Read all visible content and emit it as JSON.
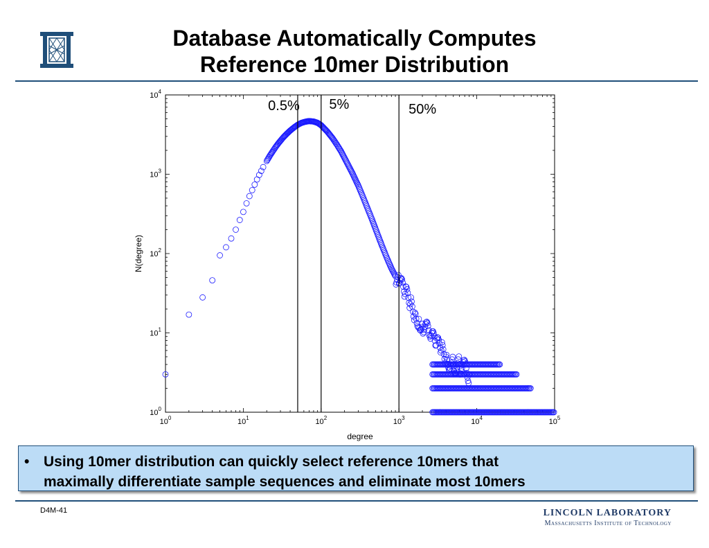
{
  "slide": {
    "title_lines": [
      "Database Automatically Computes",
      "Reference 10mer Distribution"
    ],
    "bullet_mark": "•",
    "bullet_lines": [
      "Using 10mer distribution can quickly select reference 10mers that",
      "maximally differentiate sample sequences and eliminate most 10mers"
    ],
    "footer_code": "D4M-41",
    "lab_name": "LINCOLN LABORATORY",
    "lab_subtitle": "Massachusetts Institute of Technology",
    "colors": {
      "rule": "#1f4e79",
      "bullet_box": "#bcdcf6",
      "markers": "#1a1aff",
      "lab_text": "#1f3a66"
    },
    "logo_icon": "mit-ll-logo-icon"
  },
  "chart_data": {
    "type": "scatter",
    "title": "",
    "xlabel": "degree",
    "ylabel": "N(degree)",
    "xscale": "log",
    "yscale": "log",
    "xlim": [
      1,
      100000
    ],
    "ylim": [
      1,
      10000
    ],
    "x_ticks": [
      {
        "base": "10",
        "exp": "0"
      },
      {
        "base": "10",
        "exp": "1"
      },
      {
        "base": "10",
        "exp": "2"
      },
      {
        "base": "10",
        "exp": "3"
      },
      {
        "base": "10",
        "exp": "4"
      },
      {
        "base": "10",
        "exp": "5"
      }
    ],
    "y_ticks": [
      {
        "base": "10",
        "exp": "0"
      },
      {
        "base": "10",
        "exp": "1"
      },
      {
        "base": "10",
        "exp": "2"
      },
      {
        "base": "10",
        "exp": "3"
      },
      {
        "base": "10",
        "exp": "4"
      }
    ],
    "marker": "open-circle",
    "marker_color": "#1a1aff",
    "points": [
      [
        1,
        3
      ],
      [
        2,
        17
      ],
      [
        3,
        28
      ],
      [
        4,
        46
      ],
      [
        5,
        95
      ],
      [
        6,
        120
      ],
      [
        7,
        155
      ],
      [
        8,
        200
      ],
      [
        9,
        265
      ],
      [
        10,
        335
      ],
      [
        11,
        430
      ],
      [
        12,
        530
      ],
      [
        13,
        630
      ],
      [
        14,
        740
      ],
      [
        15,
        860
      ],
      [
        16,
        980
      ],
      [
        17,
        1100
      ],
      [
        18,
        1230
      ],
      [
        20,
        1470
      ],
      [
        22,
        1720
      ],
      [
        24,
        1960
      ],
      [
        26,
        2200
      ],
      [
        28,
        2430
      ],
      [
        30,
        2640
      ],
      [
        33,
        2950
      ],
      [
        36,
        3220
      ],
      [
        40,
        3550
      ],
      [
        45,
        3900
      ],
      [
        50,
        4200
      ],
      [
        56,
        4450
      ],
      [
        63,
        4600
      ],
      [
        70,
        4680
      ],
      [
        80,
        4620
      ],
      [
        90,
        4450
      ],
      [
        100,
        4150
      ],
      [
        120,
        3450
      ],
      [
        140,
        2850
      ],
      [
        160,
        2350
      ],
      [
        180,
        1950
      ],
      [
        200,
        1600
      ],
      [
        250,
        1050
      ],
      [
        300,
        720
      ],
      [
        350,
        500
      ],
      [
        400,
        360
      ],
      [
        450,
        270
      ],
      [
        500,
        205
      ],
      [
        600,
        128
      ],
      [
        700,
        88
      ],
      [
        800,
        65
      ],
      [
        900,
        52
      ],
      [
        1000,
        42
      ],
      [
        1200,
        31
      ],
      [
        1400,
        23
      ],
      [
        1600,
        18
      ],
      [
        1800,
        15
      ],
      [
        2000,
        13
      ],
      [
        2500,
        9
      ],
      [
        3000,
        7
      ],
      [
        3500,
        6
      ],
      [
        4000,
        5
      ],
      [
        5000,
        4
      ],
      [
        6000,
        4
      ],
      [
        8000,
        3
      ]
    ],
    "spread_bands": [
      {
        "y": 4,
        "x_from": 2700,
        "x_to": 20000
      },
      {
        "y": 3,
        "x_from": 2700,
        "x_to": 33000
      },
      {
        "y": 2,
        "x_from": 2700,
        "x_to": 50000
      },
      {
        "y": 1,
        "x_from": 2700,
        "x_to": 100000
      }
    ],
    "vertical_lines": [
      {
        "x": 50,
        "label": "0.5%"
      },
      {
        "x": 100,
        "label": "5%"
      },
      {
        "x": 1000,
        "label": "50%"
      }
    ]
  }
}
